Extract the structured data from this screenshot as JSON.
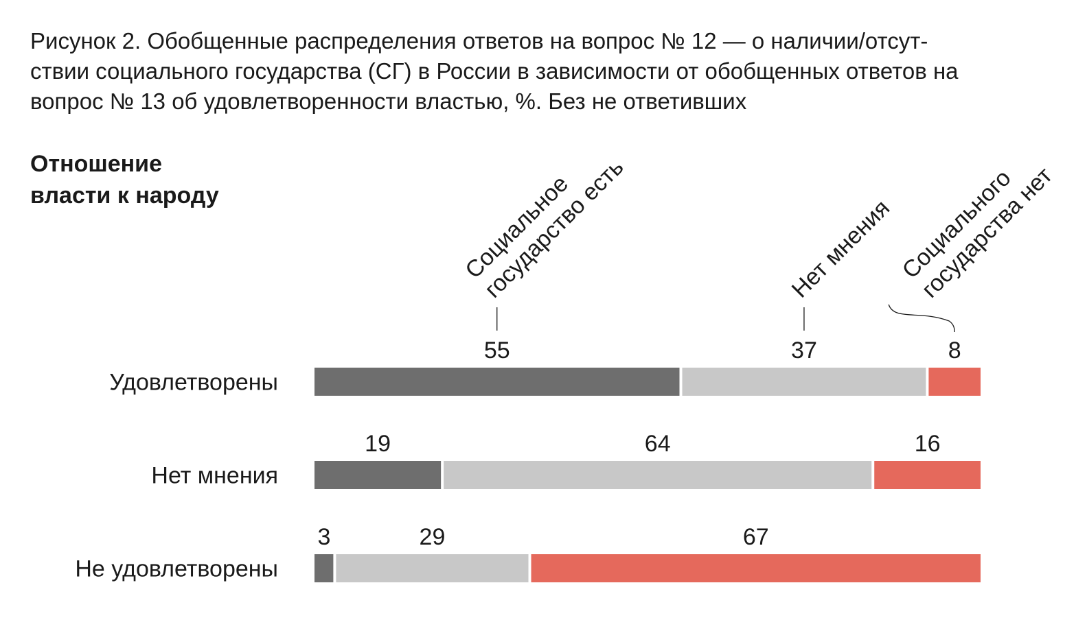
{
  "chart_data": {
    "type": "bar",
    "stacked": true,
    "orientation": "horizontal",
    "percent_scale": true,
    "title_lines": [
      "Рисунок 2. Обобщенные распределения ответов на вопрос № 12 — о наличии/отсут-",
      "ствии социального государства (СГ) в России в зависимости от обобщенных ответов на",
      "вопрос № 13 об удовлетворенности властью, %. Без не ответивших"
    ],
    "ylabel_lines": [
      "Отношение",
      "власти к народу"
    ],
    "categories": [
      "Удовлетворены",
      "Нет мнения",
      "Не удовлетворены"
    ],
    "series": [
      {
        "name_lines": [
          "Социальное",
          "государство есть"
        ],
        "color": "#6e6e6e",
        "values": [
          55,
          19,
          3
        ]
      },
      {
        "name_lines": [
          "Нет мнения"
        ],
        "color": "#c8c8c8",
        "values": [
          37,
          64,
          29
        ]
      },
      {
        "name_lines": [
          "Социального",
          "государства нет"
        ],
        "color": "#e5695c",
        "values": [
          8,
          16,
          67
        ]
      }
    ],
    "legend_placement": "top, rotated labels above first bar",
    "grid": false
  }
}
